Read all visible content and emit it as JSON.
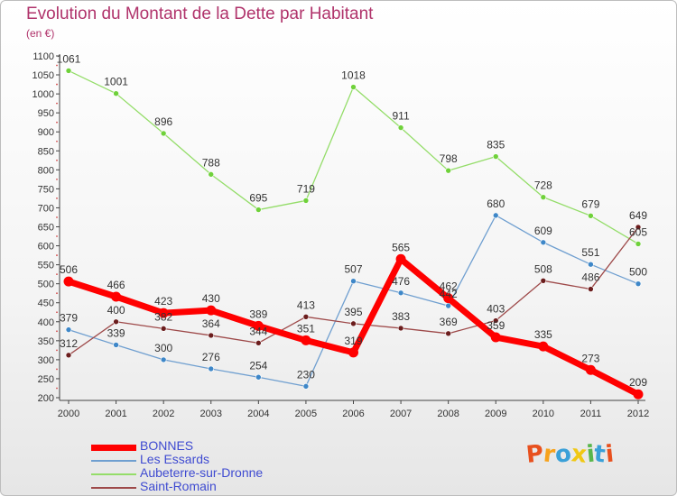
{
  "title": "Evolution du Montant de la Dette par Habitant",
  "subtitle": "(en €)",
  "logo": {
    "letters": [
      "P",
      "r",
      "o",
      "x",
      "i",
      "t",
      "i"
    ],
    "colors": [
      "#e8501e",
      "#f7a21b",
      "#3aa0d8",
      "#f0c814",
      "#59b64b",
      "#3aa0d8",
      "#e8501e"
    ]
  },
  "chart_data": {
    "type": "line",
    "x": [
      "2000",
      "2001",
      "2002",
      "2003",
      "2004",
      "2005",
      "2006",
      "2007",
      "2008",
      "2009",
      "2010",
      "2011",
      "2012"
    ],
    "ylim": [
      200,
      1100
    ],
    "yticks": [
      200,
      250,
      300,
      350,
      400,
      450,
      500,
      550,
      600,
      650,
      700,
      750,
      800,
      850,
      900,
      950,
      1000,
      1050,
      1100
    ],
    "grid": false,
    "legend": "bottom-left",
    "series": [
      {
        "name": "BONNES",
        "color": "#ff0000",
        "width": 7,
        "values": [
          506,
          466,
          423,
          430,
          389,
          351,
          319,
          565,
          462,
          359,
          335,
          273,
          209
        ]
      },
      {
        "name": "Les Essards",
        "color": "#6f9fd0",
        "width": 1.3,
        "values": [
          379,
          339,
          300,
          276,
          254,
          230,
          507,
          476,
          442,
          680,
          609,
          551,
          500
        ]
      },
      {
        "name": "Aubeterre-sur-Dronne",
        "color": "#94dd69",
        "width": 1.3,
        "values": [
          1061,
          1001,
          896,
          788,
          695,
          719,
          1018,
          911,
          798,
          835,
          728,
          679,
          605
        ]
      },
      {
        "name": "Saint-Romain",
        "color": "#9e4a4a",
        "width": 1.3,
        "values": [
          312,
          400,
          382,
          364,
          344,
          413,
          395,
          383,
          369,
          403,
          508,
          486,
          649
        ]
      }
    ],
    "marker_colors": [
      "#ff0000",
      "#3e87c8",
      "#6fd13a",
      "#6b1d1d"
    ]
  }
}
